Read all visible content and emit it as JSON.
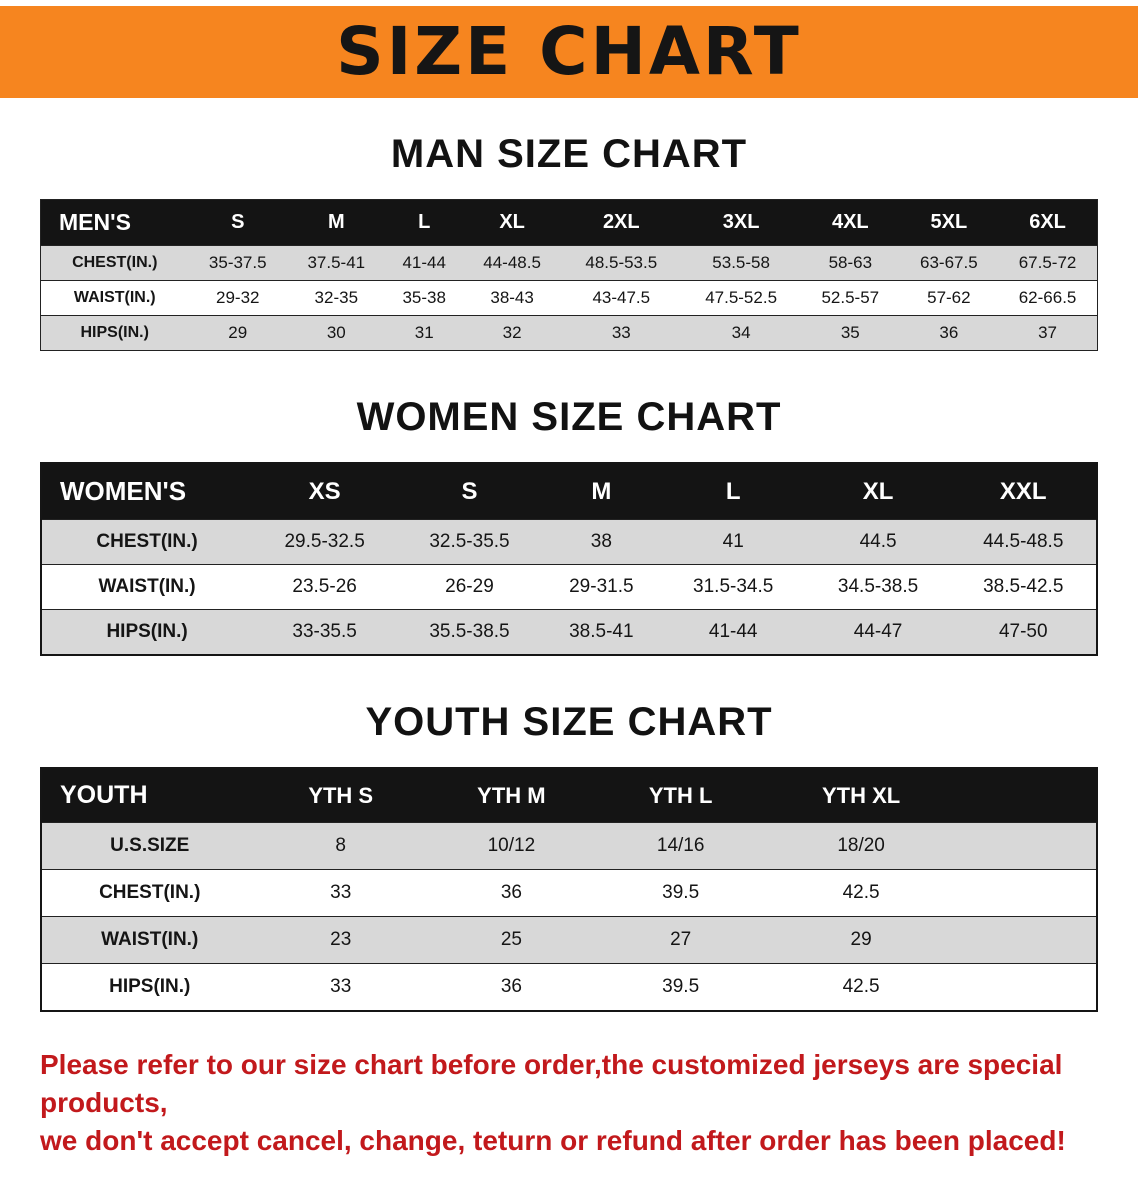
{
  "banner": {
    "title": "SIZE CHART"
  },
  "colors": {
    "banner_bg": "#f6851f",
    "table_header_bg": "#141414",
    "row_shaded": "#d8d8d8",
    "notice_text": "#c2191c"
  },
  "sections": [
    {
      "heading": "MAN SIZE CHART",
      "table": {
        "header": [
          "MEN'S",
          "S",
          "M",
          "L",
          "XL",
          "2XL",
          "3XL",
          "4XL",
          "5XL",
          "6XL"
        ],
        "rows": [
          {
            "label": "CHEST(IN.)",
            "values": [
              "35-37.5",
              "37.5-41",
              "41-44",
              "44-48.5",
              "48.5-53.5",
              "53.5-58",
              "58-63",
              "63-67.5",
              "67.5-72"
            ]
          },
          {
            "label": "WAIST(IN.)",
            "values": [
              "29-32",
              "32-35",
              "35-38",
              "38-43",
              "43-47.5",
              "47.5-52.5",
              "52.5-57",
              "57-62",
              "62-66.5"
            ]
          },
          {
            "label": "HIPS(IN.)",
            "values": [
              "29",
              "30",
              "31",
              "32",
              "33",
              "34",
              "35",
              "36",
              "37"
            ]
          }
        ]
      }
    },
    {
      "heading": "WOMEN SIZE CHART",
      "table": {
        "header": [
          "WOMEN'S",
          "XS",
          "S",
          "M",
          "L",
          "XL",
          "XXL"
        ],
        "rows": [
          {
            "label": "CHEST(IN.)",
            "values": [
              "29.5-32.5",
              "32.5-35.5",
              "38",
              "41",
              "44.5",
              "44.5-48.5"
            ]
          },
          {
            "label": "WAIST(IN.)",
            "values": [
              "23.5-26",
              "26-29",
              "29-31.5",
              "31.5-34.5",
              "34.5-38.5",
              "38.5-42.5"
            ]
          },
          {
            "label": "HIPS(IN.)",
            "values": [
              "33-35.5",
              "35.5-38.5",
              "38.5-41",
              "41-44",
              "44-47",
              "47-50"
            ]
          }
        ]
      }
    },
    {
      "heading": "YOUTH SIZE CHART",
      "table": {
        "header": [
          "YOUTH",
          "YTH S",
          "YTH M",
          "YTH L",
          "YTH XL"
        ],
        "rows": [
          {
            "label": "U.S.SIZE",
            "values": [
              "8",
              "10/12",
              "14/16",
              "18/20"
            ]
          },
          {
            "label": "CHEST(IN.)",
            "values": [
              "33",
              "36",
              "39.5",
              "42.5"
            ]
          },
          {
            "label": "WAIST(IN.)",
            "values": [
              "23",
              "25",
              "27",
              "29"
            ]
          },
          {
            "label": "HIPS(IN.)",
            "values": [
              "33",
              "36",
              "39.5",
              "42.5"
            ]
          }
        ]
      }
    }
  ],
  "footer": {
    "line1": "Please refer to our size chart before order,the customized jerseys are special products,",
    "line2": "we don't accept cancel, change, teturn or refund after order has been placed!"
  }
}
